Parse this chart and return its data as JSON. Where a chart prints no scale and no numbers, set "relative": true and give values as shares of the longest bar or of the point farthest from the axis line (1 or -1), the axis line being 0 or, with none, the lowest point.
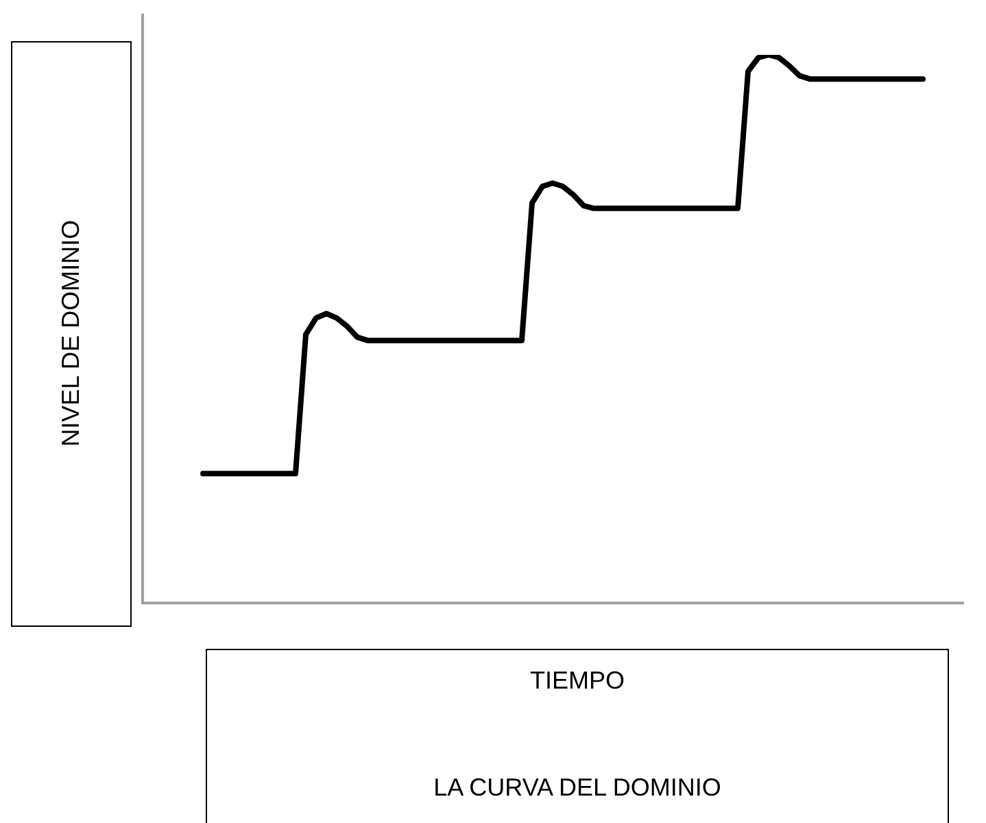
{
  "chart_data": {
    "type": "line",
    "title": "LA CURVA DEL DOMINIO",
    "xlabel": "TIEMPO",
    "ylabel": "NIVEL DE DOMINIO",
    "relative": true,
    "legend": false,
    "categories": [
      null,
      null,
      null,
      null,
      null,
      null,
      null,
      null,
      null,
      null,
      null,
      null,
      null,
      null,
      null,
      null,
      null,
      null,
      null,
      null,
      null,
      null,
      null,
      null,
      null,
      null,
      null,
      null,
      null,
      null,
      null,
      null,
      null,
      null,
      null,
      null,
      null,
      null,
      null,
      null,
      null,
      null,
      null,
      null,
      null,
      null,
      null,
      null,
      null,
      null,
      null,
      null,
      null,
      null,
      null,
      null,
      null,
      null,
      null,
      null,
      null,
      null,
      null,
      null,
      null,
      null,
      null,
      null,
      null,
      null,
      null
    ],
    "series": [
      {
        "color": "#000000",
        "values": [
          0.236,
          0.236,
          0.236,
          0.236,
          0.236,
          0.236,
          0.236,
          0.236,
          0.236,
          0.236,
          0.49,
          0.52,
          0.528,
          0.52,
          0.505,
          0.485,
          0.479,
          0.479,
          0.479,
          0.479,
          0.479,
          0.479,
          0.479,
          0.479,
          0.479,
          0.479,
          0.479,
          0.479,
          0.479,
          0.479,
          0.479,
          0.479,
          0.73,
          0.76,
          0.766,
          0.76,
          0.745,
          0.725,
          0.72,
          0.72,
          0.72,
          0.72,
          0.72,
          0.72,
          0.72,
          0.72,
          0.72,
          0.72,
          0.72,
          0.72,
          0.72,
          0.72,
          0.72,
          0.97,
          0.995,
          1,
          0.995,
          0.98,
          0.962,
          0.956,
          0.956,
          0.956,
          0.956,
          0.956,
          0.956,
          0.956,
          0.956,
          0.956,
          0.956,
          0.956,
          0.956
        ]
      }
    ]
  }
}
